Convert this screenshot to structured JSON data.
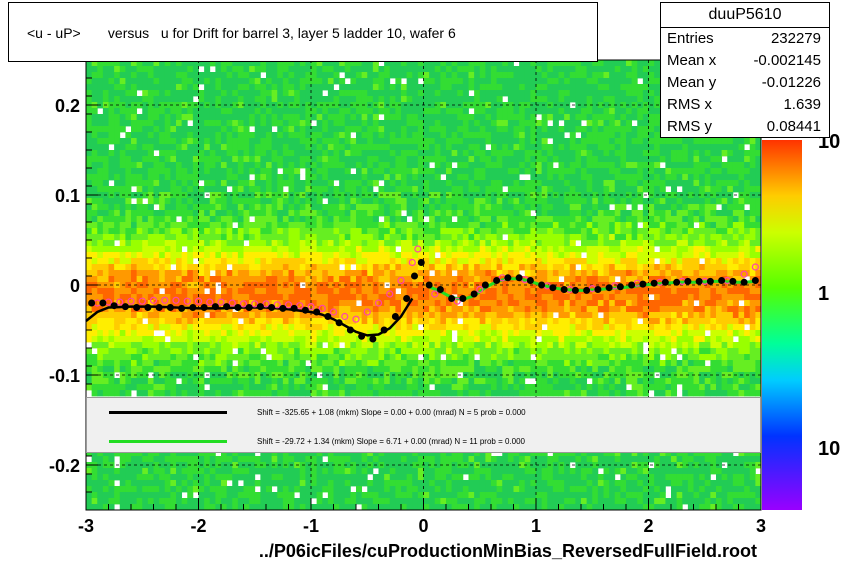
{
  "title": "<u - uP>       versus   u for Drift for barrel 3, layer 5 ladder 10, wafer 6",
  "footer": "../P06icFiles/cuProductionMinBias_ReversedFullField.root",
  "stats": {
    "name": "duuP5610",
    "rows": [
      {
        "label": "Entries",
        "value": "232279"
      },
      {
        "label": "Mean x",
        "value": "-0.002145"
      },
      {
        "label": "Mean y",
        "value": "-0.01226"
      },
      {
        "label": "RMS x",
        "value": "1.639"
      },
      {
        "label": "RMS y",
        "value": "0.08441"
      }
    ]
  },
  "legend": [
    {
      "color": "#000000",
      "text": "Shift =   -325.65 + 1.08 (mkm) Slope =     0.00 + 0.00 (mrad)  N = 5 prob = 0.000"
    },
    {
      "color": "#22dd22",
      "text": "Shift =    -29.72 + 1.34 (mkm) Slope =     6.71 + 0.00 (mrad)  N = 11 prob = 0.000"
    }
  ],
  "colors": {
    "black_fit": "#000000",
    "green_fit": "#22dd22",
    "open_markers": "#ff44aa"
  },
  "chart_data": {
    "type": "heatmap",
    "xlim": [
      -3,
      3
    ],
    "ylim": [
      -0.25,
      0.25
    ],
    "x_ticks": [
      "-3",
      "-2",
      "-1",
      "0",
      "1",
      "2",
      "3"
    ],
    "y_ticks": [
      "-0.2",
      "-0.1",
      "0",
      "0.1",
      "0.2"
    ],
    "colorbar_ticks": [
      "10",
      "1",
      "10"
    ],
    "grid": true,
    "filled_points": {
      "x": [
        -2.95,
        -2.85,
        -2.75,
        -2.65,
        -2.55,
        -2.45,
        -2.35,
        -2.25,
        -2.15,
        -2.05,
        -1.95,
        -1.85,
        -1.75,
        -1.65,
        -1.55,
        -1.45,
        -1.35,
        -1.25,
        -1.15,
        -1.05,
        -0.95,
        -0.85,
        -0.75,
        -0.65,
        -0.55,
        -0.45,
        -0.35,
        -0.25,
        -0.15,
        -0.08,
        -0.02,
        0.05,
        0.15,
        0.25,
        0.35,
        0.45,
        0.55,
        0.65,
        0.75,
        0.85,
        0.95,
        1.05,
        1.15,
        1.25,
        1.35,
        1.45,
        1.55,
        1.65,
        1.75,
        1.85,
        1.95,
        2.05,
        2.15,
        2.25,
        2.35,
        2.45,
        2.55,
        2.65,
        2.75,
        2.85,
        2.95
      ],
      "y": [
        -0.02,
        -0.02,
        -0.023,
        -0.024,
        -0.025,
        -0.025,
        -0.025,
        -0.025,
        -0.026,
        -0.025,
        -0.025,
        -0.024,
        -0.024,
        -0.025,
        -0.025,
        -0.024,
        -0.025,
        -0.026,
        -0.026,
        -0.028,
        -0.03,
        -0.035,
        -0.042,
        -0.05,
        -0.057,
        -0.06,
        -0.05,
        -0.035,
        -0.015,
        0.01,
        0.025,
        0,
        -0.005,
        -0.015,
        -0.015,
        -0.01,
        0,
        0.005,
        0.008,
        0.008,
        0.005,
        0,
        -0.003,
        -0.005,
        -0.006,
        -0.006,
        -0.005,
        -0.003,
        -0.002,
        0,
        0.001,
        0.002,
        0.003,
        0.003,
        0.004,
        0.004,
        0.004,
        0.005,
        0.004,
        0.003,
        0.005
      ]
    },
    "open_points": {
      "x": [
        -2.9,
        -2.8,
        -2.7,
        -2.6,
        -2.5,
        -2.4,
        -2.3,
        -2.2,
        -2.1,
        -2.0,
        -1.9,
        -1.8,
        -1.7,
        -1.6,
        -1.5,
        -1.4,
        -1.3,
        -1.2,
        -1.1,
        -1.0,
        -0.9,
        -0.8,
        -0.7,
        -0.6,
        -0.5,
        -0.4,
        -0.3,
        -0.2,
        -0.1,
        -0.05,
        0.1,
        0.3,
        0.5,
        0.7,
        0.9,
        1.1,
        1.3,
        1.5,
        1.7,
        1.9,
        2.1,
        2.3,
        2.5,
        2.7,
        2.85,
        2.95
      ],
      "y": [
        -0.02,
        -0.019,
        -0.019,
        -0.018,
        -0.018,
        -0.017,
        -0.017,
        -0.017,
        -0.018,
        -0.018,
        -0.019,
        -0.019,
        -0.02,
        -0.021,
        -0.021,
        -0.021,
        -0.022,
        -0.022,
        -0.023,
        -0.024,
        -0.026,
        -0.03,
        -0.035,
        -0.038,
        -0.03,
        -0.02,
        -0.01,
        0.005,
        0.025,
        0.04,
        -0.01,
        -0.018,
        -0.005,
        0.008,
        0.006,
        -0.001,
        -0.005,
        -0.004,
        -0.001,
        0.002,
        0.003,
        0.004,
        0.004,
        0.005,
        0.012,
        0.02
      ]
    },
    "black_fit": {
      "x": [
        -3.0,
        -2.9,
        -2.8,
        -2.6,
        -2.4,
        -2.2,
        -2.0,
        -1.8,
        -1.6,
        -1.4,
        -1.2,
        -1.0,
        -0.9,
        -0.8,
        -0.7,
        -0.6,
        -0.5,
        -0.4,
        -0.3,
        -0.2,
        -0.1
      ],
      "y": [
        -0.04,
        -0.03,
        -0.025,
        -0.024,
        -0.024,
        -0.025,
        -0.026,
        -0.026,
        -0.025,
        -0.025,
        -0.027,
        -0.03,
        -0.033,
        -0.038,
        -0.045,
        -0.052,
        -0.056,
        -0.055,
        -0.048,
        -0.035,
        -0.015
      ]
    },
    "green_fit": {
      "x": [
        0.05,
        0.15,
        0.25,
        0.35,
        0.45,
        0.55,
        0.65,
        0.75,
        0.85,
        0.95,
        1.05,
        1.15,
        1.25,
        1.35,
        1.45,
        1.55,
        1.65,
        1.75,
        1.85,
        1.95,
        2.05,
        2.15,
        2.25,
        2.35,
        2.45,
        2.55,
        2.65,
        2.75,
        2.85,
        2.95
      ],
      "y": [
        -0.002,
        -0.007,
        -0.014,
        -0.016,
        -0.012,
        -0.003,
        0.004,
        0.007,
        0.007,
        0.004,
        0,
        -0.003,
        -0.005,
        -0.006,
        -0.006,
        -0.005,
        -0.004,
        -0.003,
        -0.002,
        0,
        0.001,
        0.002,
        0.003,
        0.003,
        0.003,
        0.004,
        0.004,
        0.003,
        0.003,
        0.004
      ]
    }
  }
}
